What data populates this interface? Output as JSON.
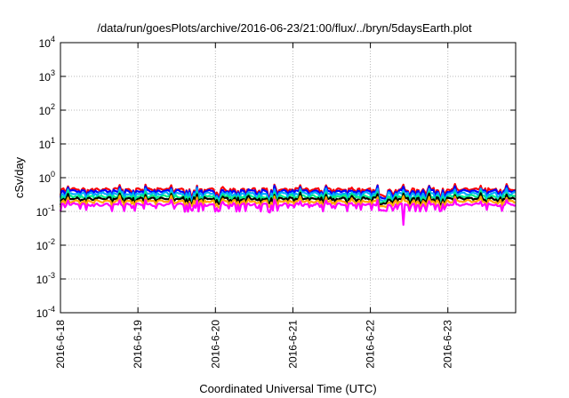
{
  "chart_data": {
    "type": "line",
    "title": "/data/run/goesPlots/archive/2016-06-23/21:00/flux/../bryn/5daysEarth.plot",
    "xlabel": "Coordinated Universal Time (UTC)",
    "ylabel": "cSv/day",
    "yscale": "log",
    "ylim": [
      0.0001,
      10000
    ],
    "y_ticks": [
      {
        "base": "10",
        "exp": "-4"
      },
      {
        "base": "10",
        "exp": "-3"
      },
      {
        "base": "10",
        "exp": "-2"
      },
      {
        "base": "10",
        "exp": "-1"
      },
      {
        "base": "10",
        "exp": "0"
      },
      {
        "base": "10",
        "exp": "1"
      },
      {
        "base": "10",
        "exp": "2"
      },
      {
        "base": "10",
        "exp": "3"
      },
      {
        "base": "10",
        "exp": "4"
      }
    ],
    "x_ticks": [
      "2016-6-18",
      "2016-6-19",
      "2016-6-20",
      "2016-6-21",
      "2016-6-22",
      "2016-6-23"
    ],
    "xlim": [
      "2016-06-18 00:00",
      "2016-06-23 21:00"
    ],
    "grid": true,
    "series": [
      {
        "color": "#ff0000",
        "baseline": 0.45,
        "dip_depth": 0.35
      },
      {
        "color": "#0000ff",
        "baseline": 0.4,
        "dip_depth": 0.35
      },
      {
        "color": "#00aaff",
        "baseline": 0.34,
        "dip_depth": 0.35
      },
      {
        "color": "#00ee88",
        "baseline": 0.28,
        "dip_depth": 0.3
      },
      {
        "color": "#000000",
        "baseline": 0.24,
        "dip_depth": 0.3
      },
      {
        "color": "#ffaa00",
        "baseline": 0.2,
        "dip_depth": 0.3
      },
      {
        "color": "#ff00ff",
        "baseline": 0.16,
        "dip_depth": 0.35,
        "spike": {
          "at": "2016-06-22 10:00",
          "value": 0.04
        }
      }
    ]
  }
}
